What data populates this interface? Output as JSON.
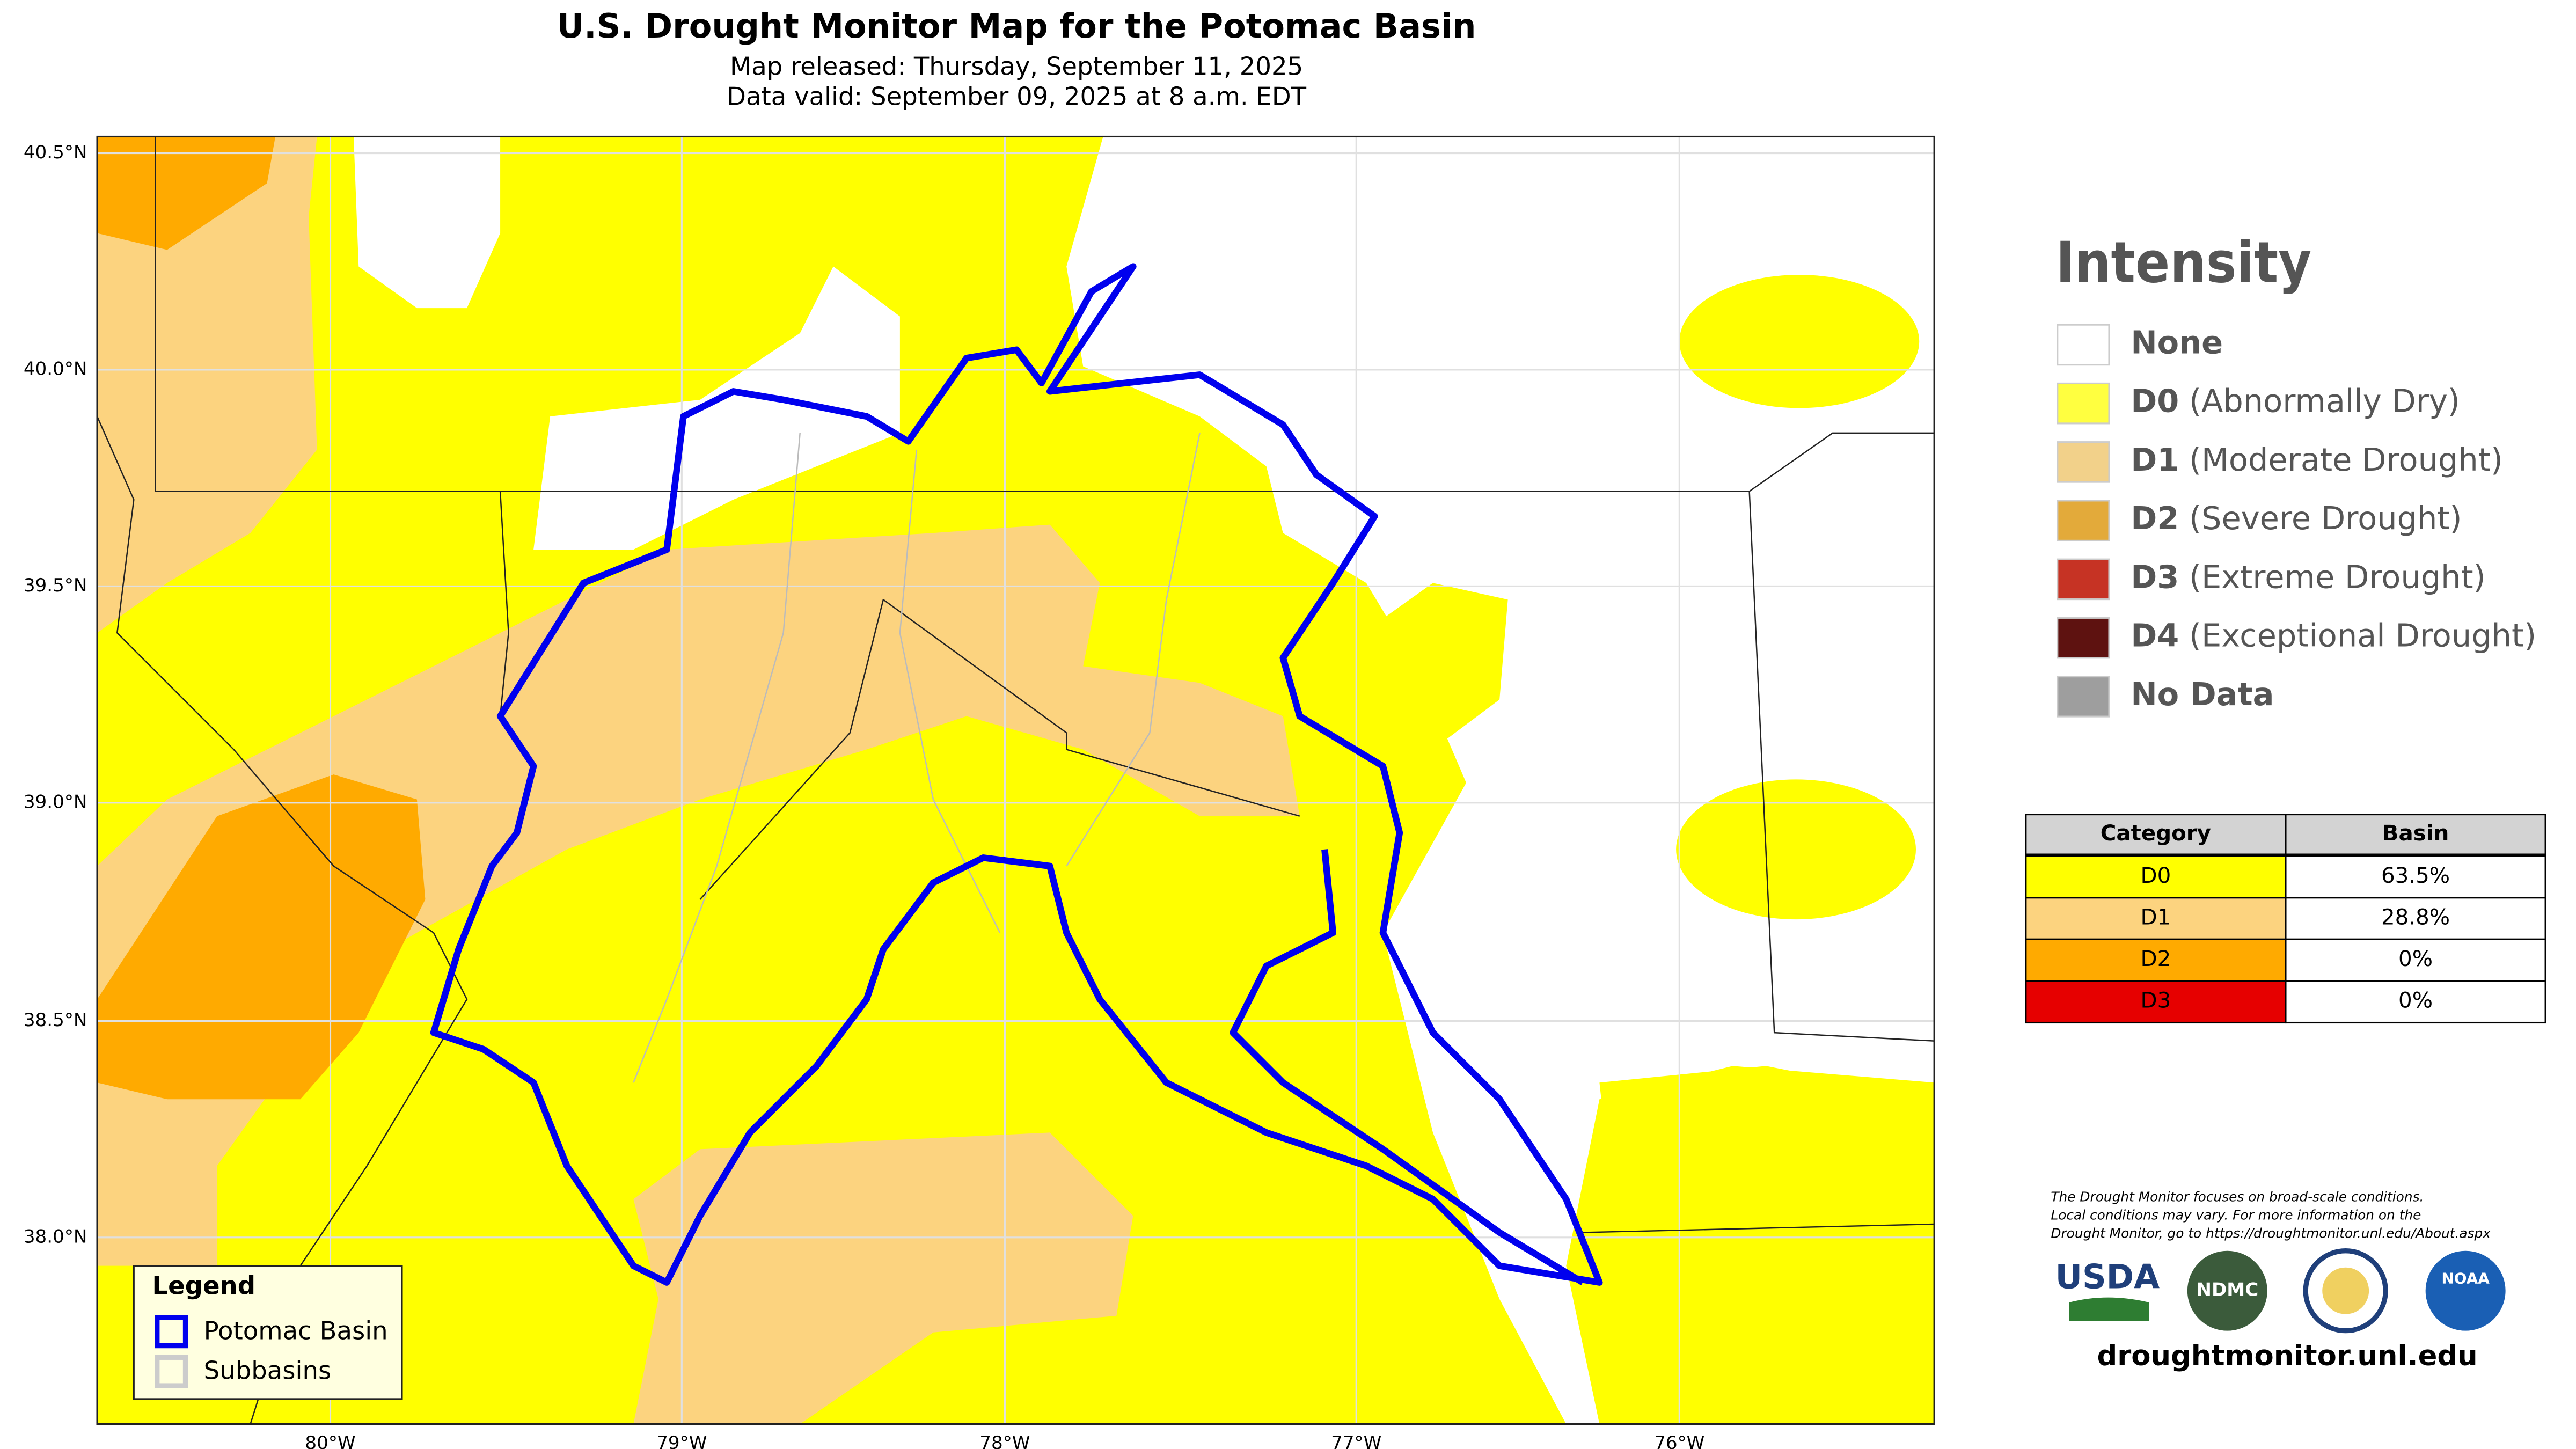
{
  "header": {
    "title": "U.S. Drought Monitor Map for the Potomac Basin",
    "released": "Map released: Thursday, September 11, 2025",
    "valid": "Data valid: September 09, 2025 at 8 a.m. EDT"
  },
  "map": {
    "lat_labels": [
      "40.5°N",
      "40.0°N",
      "39.5°N",
      "39.0°N",
      "38.5°N",
      "38.0°N"
    ],
    "lon_labels": [
      "80°W",
      "79°W",
      "78°W",
      "77°W",
      "76°W"
    ],
    "legend": {
      "title": "Legend",
      "items": [
        "Potomac Basin",
        "Subbasins"
      ]
    }
  },
  "intensity": {
    "title": "Intensity",
    "items": [
      {
        "code": "None"
      },
      {
        "code": "D0",
        "label": "(Abnormally Dry)"
      },
      {
        "code": "D1",
        "label": "(Moderate Drought)"
      },
      {
        "code": "D2",
        "label": "(Severe Drought)"
      },
      {
        "code": "D3",
        "label": "(Extreme Drought)"
      },
      {
        "code": "D4",
        "label": "(Exceptional Drought)"
      },
      {
        "code": "No Data"
      }
    ]
  },
  "table": {
    "header": [
      "Category",
      "Basin"
    ],
    "rows": [
      [
        "D0",
        "63.5%"
      ],
      [
        "D1",
        "28.8%"
      ],
      [
        "D2",
        "0%"
      ],
      [
        "D3",
        "0%"
      ]
    ]
  },
  "disclaimer": [
    "The Drought Monitor focuses on broad-scale conditions.",
    "Local conditions may vary. For more information on the",
    "Drought Monitor, go to https://droughtmonitor.unl.edu/About.aspx"
  ],
  "logos": {
    "usda": "USDA",
    "ndmc": "NDMC",
    "noaa": "NOAA"
  },
  "url": "droughtmonitor.unl.edu"
}
